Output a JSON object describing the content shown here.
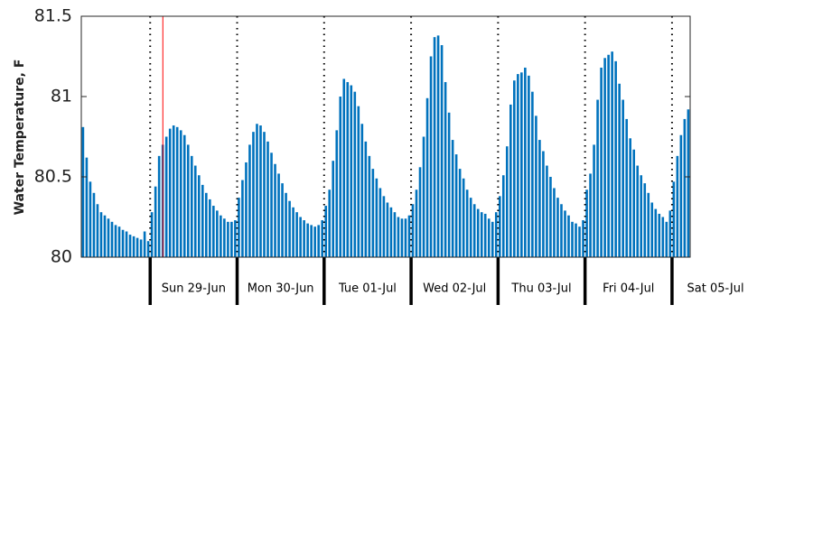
{
  "chart_data": {
    "type": "bar",
    "y_label": "Water Temperature, F",
    "color": "#0072bd",
    "xlim": [
      0,
      168
    ],
    "x": [
      0,
      1,
      2,
      3,
      4,
      5,
      6,
      7,
      8,
      9,
      10,
      11,
      12,
      13,
      14,
      15,
      16,
      17,
      18,
      19,
      20,
      21,
      22,
      23,
      24,
      25,
      26,
      27,
      28,
      29,
      30,
      31,
      32,
      33,
      34,
      35,
      36,
      37,
      38,
      39,
      40,
      41,
      42,
      43,
      44,
      45,
      46,
      47,
      48,
      49,
      50,
      51,
      52,
      53,
      54,
      55,
      56,
      57,
      58,
      59,
      60,
      61,
      62,
      63,
      64,
      65,
      66,
      67,
      68,
      69,
      70,
      71,
      72,
      73,
      74,
      75,
      76,
      77,
      78,
      79,
      80,
      81,
      82,
      83,
      84,
      85,
      86,
      87,
      88,
      89,
      90,
      91,
      92,
      93,
      94,
      95,
      96,
      97,
      98,
      99,
      100,
      101,
      102,
      103,
      104,
      105,
      106,
      107,
      108,
      109,
      110,
      111,
      112,
      113,
      114,
      115,
      116,
      117,
      118,
      119,
      120,
      121,
      122,
      123,
      124,
      125,
      126,
      127,
      128,
      129,
      130,
      131,
      132,
      133,
      134,
      135,
      136,
      137,
      138,
      139,
      140,
      141,
      142,
      143,
      144,
      145,
      146,
      147,
      148,
      149,
      150,
      151,
      152,
      153,
      154,
      155,
      156,
      157,
      158,
      159,
      160,
      161,
      162,
      163,
      164,
      165,
      166,
      167
    ],
    "values": [
      80.81,
      80.62,
      80.47,
      80.4,
      80.33,
      80.28,
      80.26,
      80.24,
      80.22,
      80.2,
      80.19,
      80.17,
      80.16,
      80.14,
      80.13,
      80.12,
      80.11,
      80.16,
      80.1,
      80.28,
      80.44,
      80.63,
      80.7,
      80.75,
      80.8,
      80.82,
      80.81,
      80.79,
      80.76,
      80.7,
      80.63,
      80.57,
      80.51,
      80.45,
      80.4,
      80.36,
      80.32,
      80.29,
      80.26,
      80.24,
      80.22,
      80.22,
      80.23,
      80.37,
      80.48,
      80.59,
      80.7,
      80.78,
      80.83,
      80.82,
      80.78,
      80.72,
      80.65,
      80.58,
      80.52,
      80.46,
      80.4,
      80.35,
      80.31,
      80.28,
      80.25,
      80.23,
      80.21,
      80.2,
      80.19,
      80.2,
      80.23,
      80.32,
      80.42,
      80.6,
      80.79,
      81.0,
      81.11,
      81.09,
      81.07,
      81.03,
      80.94,
      80.83,
      80.72,
      80.63,
      80.55,
      80.49,
      80.43,
      80.38,
      80.34,
      80.31,
      80.28,
      80.25,
      80.24,
      80.24,
      80.26,
      80.33,
      80.42,
      80.56,
      80.75,
      80.99,
      81.25,
      81.37,
      81.38,
      81.32,
      81.09,
      80.9,
      80.73,
      80.64,
      80.55,
      80.49,
      80.42,
      80.37,
      80.33,
      80.3,
      80.28,
      80.27,
      80.24,
      80.22,
      80.28,
      80.38,
      80.51,
      80.69,
      80.95,
      81.1,
      81.14,
      81.15,
      81.18,
      81.13,
      81.03,
      80.88,
      80.73,
      80.66,
      80.57,
      80.5,
      80.43,
      80.37,
      80.33,
      80.29,
      80.26,
      80.22,
      80.21,
      80.19,
      80.23,
      80.42,
      80.52,
      80.7,
      80.98,
      81.18,
      81.24,
      81.26,
      81.28,
      81.22,
      81.08,
      80.98,
      80.86,
      80.74,
      80.67,
      80.57,
      80.51,
      80.46,
      80.4,
      80.34,
      80.3,
      80.27,
      80.25,
      80.22,
      80.29,
      80.47,
      80.63,
      80.76,
      80.86,
      80.92
    ],
    "ylim": [
      80,
      81.5
    ],
    "yticks": [
      80,
      80.5,
      81,
      81.5
    ],
    "xticks": [
      {
        "value": 19,
        "label": "Sun 29-Jun"
      },
      {
        "value": 43,
        "label": "Mon 30-Jun"
      },
      {
        "value": 67,
        "label": "Tue 01-Jul"
      },
      {
        "value": 91,
        "label": "Wed 02-Jul"
      },
      {
        "value": 115,
        "label": "Thu 03-Jul"
      },
      {
        "value": 139,
        "label": "Fri 04-Jul"
      },
      {
        "value": 163,
        "label": "Sat 05-Jul"
      }
    ],
    "marker_line": {
      "x": 22.5,
      "color": "#ff0000"
    }
  }
}
